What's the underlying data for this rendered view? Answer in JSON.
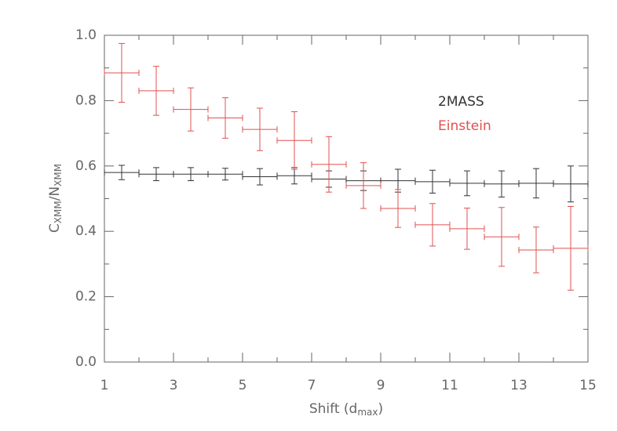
{
  "chart_data": {
    "type": "errorbar",
    "x_label": [
      "Shift (d",
      "max",
      ")"
    ],
    "y_label": [
      "C",
      "XMM",
      "/N",
      "XMM"
    ],
    "xlim": [
      1,
      15
    ],
    "xticks": [
      1,
      3,
      5,
      7,
      9,
      11,
      13,
      15
    ],
    "xminor_ticks": [
      2,
      4,
      6,
      8,
      10,
      12,
      14
    ],
    "ylim": [
      0,
      1
    ],
    "yticks": [
      {
        "value": 0,
        "label": "0.0"
      },
      0.2,
      0.4,
      0.6,
      0.8,
      {
        "value": 1,
        "label": "1.0"
      }
    ],
    "yminor_ticks": [
      0.1,
      0.3,
      0.5,
      0.7,
      0.9
    ],
    "legend": "upper right",
    "series": [
      {
        "name": "2MASS",
        "color": "#333333",
        "x": [
          1.5,
          2.5,
          3.5,
          4.5,
          5.5,
          6.5,
          7.5,
          8.5,
          9.5,
          10.5,
          11.5,
          12.5,
          13.5,
          14.5
        ],
        "xerr": [
          0.5,
          0.5,
          0.5,
          0.5,
          0.5,
          0.5,
          0.5,
          0.5,
          0.5,
          0.5,
          0.5,
          0.5,
          0.5,
          0.5
        ],
        "values": [
          0.58,
          0.575,
          0.575,
          0.575,
          0.567,
          0.57,
          0.56,
          0.555,
          0.555,
          0.552,
          0.547,
          0.545,
          0.547,
          0.545
        ],
        "yerr": [
          0.022,
          0.02,
          0.02,
          0.018,
          0.025,
          0.025,
          0.025,
          0.03,
          0.035,
          0.035,
          0.038,
          0.04,
          0.045,
          0.055
        ]
      },
      {
        "name": "Einstein",
        "color": "#e05050",
        "x": [
          1.5,
          2.5,
          3.5,
          4.5,
          5.5,
          6.5,
          7.5,
          8.5,
          9.5,
          10.5,
          11.5,
          12.5,
          13.5,
          14.5
        ],
        "xerr": [
          0.5,
          0.5,
          0.5,
          0.5,
          0.5,
          0.5,
          0.5,
          0.5,
          0.5,
          0.5,
          0.5,
          0.5,
          0.5,
          0.5
        ],
        "values": [
          0.885,
          0.83,
          0.773,
          0.747,
          0.712,
          0.678,
          0.605,
          0.54,
          0.47,
          0.42,
          0.408,
          0.383,
          0.343,
          0.348
        ],
        "yerr": [
          0.09,
          0.075,
          0.066,
          0.062,
          0.065,
          0.088,
          0.085,
          0.07,
          0.058,
          0.065,
          0.063,
          0.09,
          0.07,
          0.128
        ]
      }
    ]
  }
}
